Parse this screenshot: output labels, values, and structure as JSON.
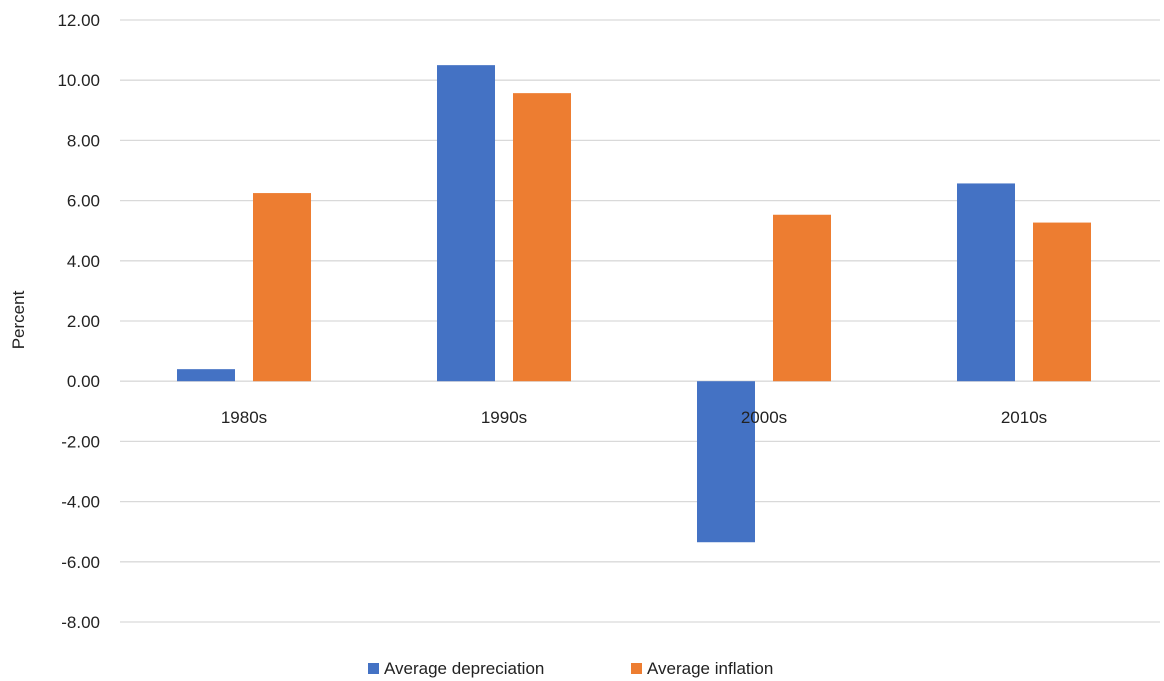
{
  "chart_data": {
    "type": "bar",
    "title": "",
    "xlabel": "",
    "ylabel": "Percent",
    "categories": [
      "1980s",
      "1990s",
      "2000s",
      "2010s"
    ],
    "series": [
      {
        "name": "Average depreciation",
        "values": [
          0.4,
          10.5,
          -5.35,
          6.57
        ],
        "color": "#4472C4"
      },
      {
        "name": "Average inflation",
        "values": [
          6.25,
          9.57,
          5.53,
          5.27
        ],
        "color": "#ED7D31"
      }
    ],
    "ylim": [
      -8,
      12
    ],
    "yticks": [
      "12.00",
      "10.00",
      "8.00",
      "6.00",
      "4.00",
      "2.00",
      "0.00",
      "-2.00",
      "-4.00",
      "-6.00",
      "-8.00"
    ],
    "grid": true,
    "legend_position": "bottom"
  }
}
